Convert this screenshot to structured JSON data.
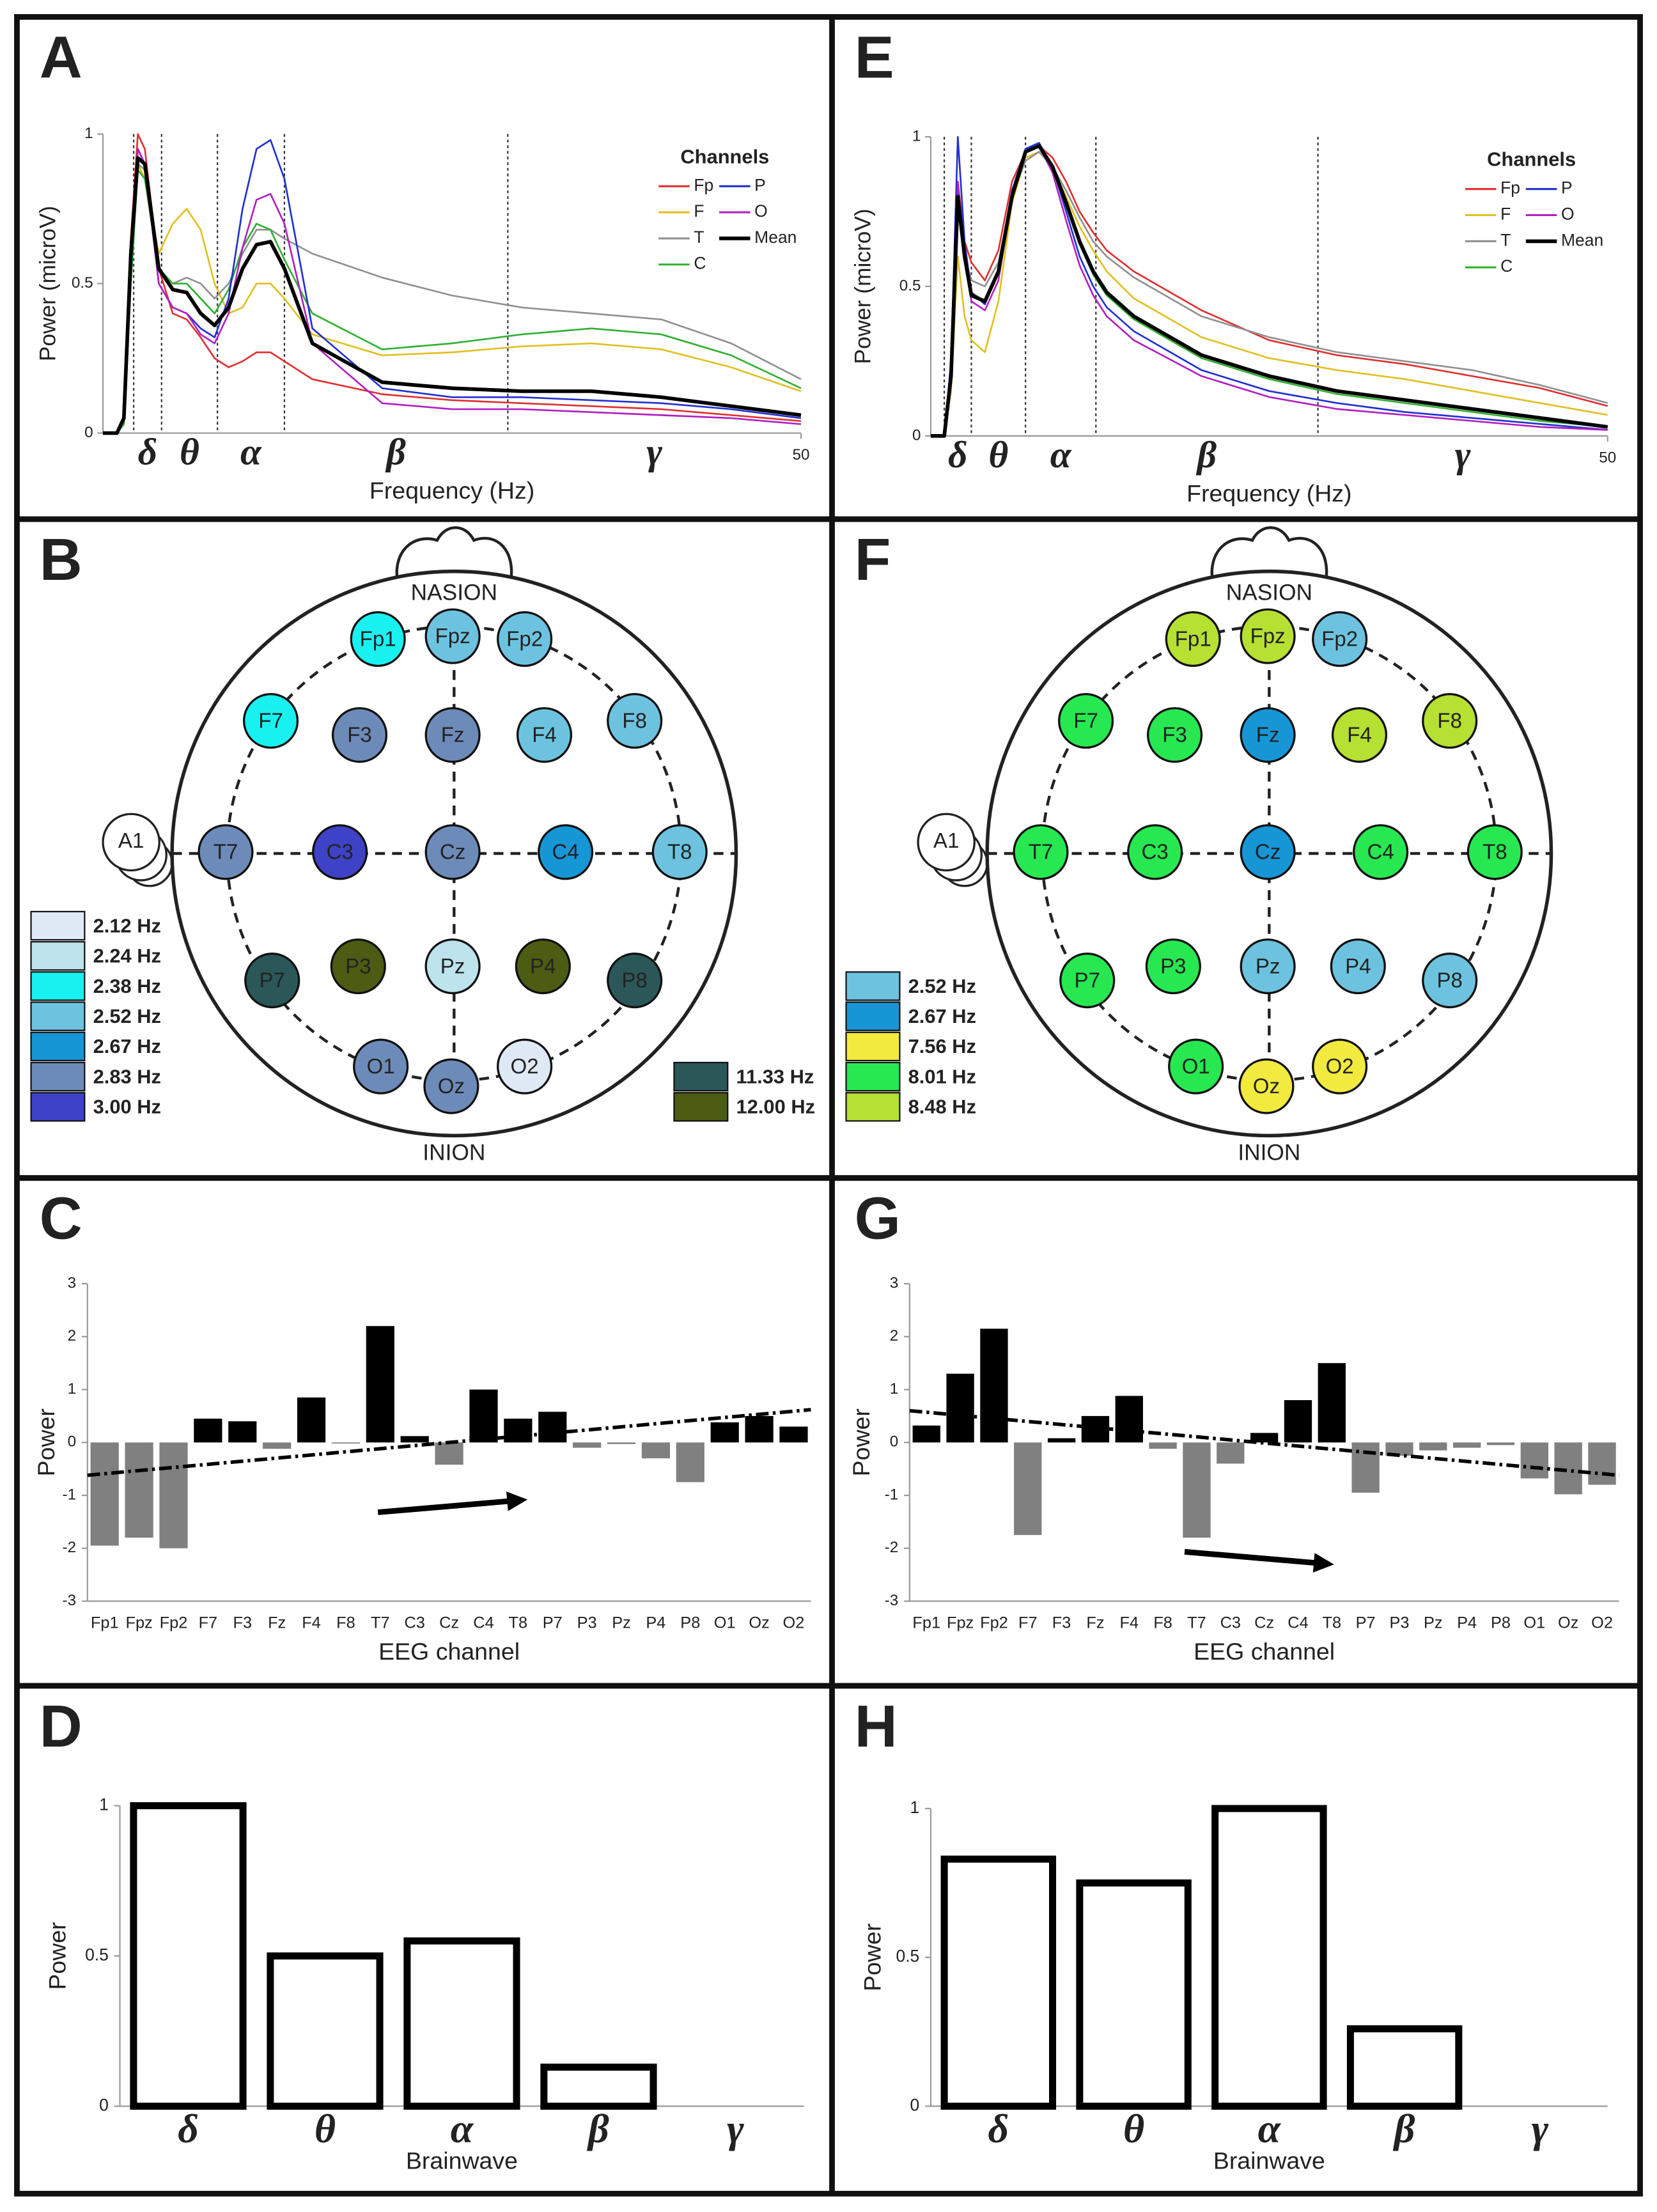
{
  "chart_data": [
    {
      "type": "line",
      "panel_label": "A",
      "xlabel": "Frequency (Hz)",
      "ylabel": "Power (microV)",
      "x": [
        0,
        1,
        1.5,
        2,
        2.5,
        3,
        4,
        5,
        6,
        7,
        8,
        9,
        10,
        11,
        12,
        13,
        15,
        20,
        25,
        30,
        35,
        40,
        45,
        50
      ],
      "xlim": [
        0,
        50
      ],
      "xticks": [
        50
      ],
      "ylim": [
        0,
        1
      ],
      "yticks": [
        0,
        0.5,
        1
      ],
      "vlines": [
        2.2,
        4.2,
        8.2,
        13,
        29
      ],
      "band_labels": [
        "δ",
        "θ",
        "α",
        "β",
        "γ"
      ],
      "legend_title": "Channels",
      "series": [
        {
          "name": "Fp",
          "color": "#e03030",
          "values": [
            0,
            0,
            0.05,
            0.65,
            1.0,
            0.95,
            0.55,
            0.4,
            0.38,
            0.32,
            0.25,
            0.22,
            0.24,
            0.27,
            0.27,
            0.24,
            0.18,
            0.13,
            0.11,
            0.1,
            0.09,
            0.08,
            0.06,
            0.04
          ]
        },
        {
          "name": "F",
          "color": "#e0c020",
          "values": [
            0,
            0,
            0.03,
            0.5,
            0.9,
            0.85,
            0.6,
            0.7,
            0.75,
            0.68,
            0.5,
            0.4,
            0.42,
            0.5,
            0.5,
            0.45,
            0.33,
            0.26,
            0.27,
            0.29,
            0.3,
            0.28,
            0.22,
            0.14
          ]
        },
        {
          "name": "T",
          "color": "#909090",
          "values": [
            0,
            0,
            0.03,
            0.55,
            0.9,
            0.88,
            0.55,
            0.5,
            0.52,
            0.5,
            0.45,
            0.5,
            0.6,
            0.68,
            0.68,
            0.65,
            0.6,
            0.52,
            0.46,
            0.42,
            0.4,
            0.38,
            0.3,
            0.18
          ]
        },
        {
          "name": "C",
          "color": "#30b030",
          "values": [
            0,
            0,
            0.03,
            0.5,
            0.88,
            0.85,
            0.55,
            0.5,
            0.5,
            0.45,
            0.4,
            0.48,
            0.62,
            0.7,
            0.68,
            0.58,
            0.4,
            0.28,
            0.3,
            0.33,
            0.35,
            0.33,
            0.26,
            0.15
          ]
        },
        {
          "name": "P",
          "color": "#2030d0",
          "values": [
            0,
            0,
            0.05,
            0.6,
            0.95,
            0.9,
            0.5,
            0.42,
            0.4,
            0.35,
            0.32,
            0.45,
            0.75,
            0.95,
            0.98,
            0.85,
            0.35,
            0.15,
            0.12,
            0.12,
            0.11,
            0.1,
            0.08,
            0.05
          ]
        },
        {
          "name": "O",
          "color": "#b020c0",
          "values": [
            0,
            0,
            0.05,
            0.6,
            0.95,
            0.9,
            0.5,
            0.42,
            0.4,
            0.33,
            0.3,
            0.4,
            0.62,
            0.78,
            0.8,
            0.7,
            0.3,
            0.1,
            0.08,
            0.08,
            0.07,
            0.06,
            0.05,
            0.03
          ]
        },
        {
          "name": "Mean",
          "color": "#000000",
          "values": [
            0,
            0,
            0.05,
            0.6,
            0.92,
            0.9,
            0.55,
            0.48,
            0.47,
            0.4,
            0.36,
            0.42,
            0.55,
            0.63,
            0.64,
            0.55,
            0.3,
            0.17,
            0.15,
            0.14,
            0.14,
            0.12,
            0.09,
            0.06
          ]
        }
      ]
    },
    {
      "type": "topomap",
      "panel_label": "B",
      "nasion": "NASION",
      "inion": "INION",
      "ear": "A1",
      "electrodes": [
        {
          "label": "Fp1",
          "color": "#19f1f1"
        },
        {
          "label": "Fpz",
          "color": "#6dc3df"
        },
        {
          "label": "Fp2",
          "color": "#6dc3df"
        },
        {
          "label": "F7",
          "color": "#19f1f1"
        },
        {
          "label": "F3",
          "color": "#6d8bb9"
        },
        {
          "label": "Fz",
          "color": "#6d8bb9"
        },
        {
          "label": "F4",
          "color": "#6dc3df"
        },
        {
          "label": "F8",
          "color": "#6dc3df"
        },
        {
          "label": "T7",
          "color": "#6d8bb9"
        },
        {
          "label": "C3",
          "color": "#3d42c6"
        },
        {
          "label": "Cz",
          "color": "#6d8bb9"
        },
        {
          "label": "C4",
          "color": "#1796d6"
        },
        {
          "label": "T8",
          "color": "#6dc3df"
        },
        {
          "label": "P7",
          "color": "#2c5758"
        },
        {
          "label": "P3",
          "color": "#4c5c12"
        },
        {
          "label": "Pz",
          "color": "#bde3ec"
        },
        {
          "label": "P4",
          "color": "#4c5c12"
        },
        {
          "label": "P8",
          "color": "#2c5758"
        },
        {
          "label": "O1",
          "color": "#6d8bb9"
        },
        {
          "label": "Oz",
          "color": "#6d8bb9"
        },
        {
          "label": "O2",
          "color": "#dfe9f6"
        }
      ],
      "legend": [
        [
          {
            "label": "2.12 Hz",
            "color": "#dfe9f6"
          },
          {
            "label": "2.24 Hz",
            "color": "#bde3ec"
          },
          {
            "label": "2.38 Hz",
            "color": "#19f1f1"
          },
          {
            "label": "2.52 Hz",
            "color": "#6dc3df"
          },
          {
            "label": "2.67 Hz",
            "color": "#1796d6"
          },
          {
            "label": "2.83 Hz",
            "color": "#6d8bb9"
          },
          {
            "label": "3.00 Hz",
            "color": "#3d42c6"
          }
        ],
        [
          {
            "label": "11.33 Hz",
            "color": "#2c5758"
          },
          {
            "label": "12.00 Hz",
            "color": "#4c5c12"
          }
        ]
      ]
    },
    {
      "type": "bar",
      "panel_label": "C",
      "xlabel": "EEG channel",
      "ylabel": "Power",
      "categories": [
        "Fp1",
        "Fpz",
        "Fp2",
        "F7",
        "F3",
        "Fz",
        "F4",
        "F8",
        "T7",
        "C3",
        "Cz",
        "C4",
        "T8",
        "P7",
        "P3",
        "Pz",
        "P4",
        "P8",
        "O1",
        "Oz",
        "O2"
      ],
      "values": [
        -1.95,
        -1.8,
        -2.0,
        0.45,
        0.4,
        -0.12,
        0.85,
        -0.02,
        2.2,
        0.12,
        -0.42,
        1.0,
        0.45,
        0.58,
        -0.1,
        -0.03,
        -0.3,
        -0.75,
        0.38,
        0.5,
        0.3
      ],
      "color": "#000000",
      "negative_color": "#808080",
      "ylim": [
        -3,
        3
      ],
      "yticks": [
        -3,
        -2,
        -1,
        0,
        1,
        2,
        3
      ],
      "trend": [
        -0.62,
        0.62
      ]
    },
    {
      "type": "bar",
      "panel_label": "D",
      "xlabel": "Brainwave",
      "ylabel": "Power",
      "categories": [
        "δ",
        "θ",
        "α",
        "β",
        "γ"
      ],
      "values": [
        1,
        0.5,
        0.55,
        0.13,
        0
      ],
      "color": "#ffffff",
      "edge_color": "#000000",
      "ylim": [
        0,
        1
      ],
      "yticks": [
        0,
        0.5,
        1
      ]
    },
    {
      "type": "line",
      "panel_label": "E",
      "xlabel": "Frequency (Hz)",
      "ylabel": "Power (microV)",
      "x": [
        0,
        1,
        1.5,
        2,
        2.5,
        3,
        4,
        5,
        6,
        7,
        8,
        9,
        10,
        11,
        12,
        13,
        15,
        20,
        25,
        30,
        35,
        40,
        45,
        50
      ],
      "xlim": [
        0,
        50
      ],
      "xticks": [
        50
      ],
      "ylim": [
        0,
        1
      ],
      "yticks": [
        0,
        0.5,
        1
      ],
      "vlines": [
        1,
        3,
        7,
        12.2,
        28.6
      ],
      "band_labels": [
        "δ",
        "θ",
        "α",
        "β",
        "γ"
      ],
      "legend_title": "Channels",
      "series": [
        {
          "name": "Fp",
          "color": "#e03030",
          "values": [
            0,
            0,
            0.2,
            0.85,
            0.65,
            0.58,
            0.52,
            0.62,
            0.85,
            0.95,
            0.97,
            0.93,
            0.85,
            0.75,
            0.68,
            0.62,
            0.55,
            0.42,
            0.32,
            0.27,
            0.24,
            0.2,
            0.16,
            0.1
          ]
        },
        {
          "name": "F",
          "color": "#e0c020",
          "values": [
            0,
            0,
            0.15,
            0.6,
            0.4,
            0.32,
            0.28,
            0.45,
            0.78,
            0.93,
            0.95,
            0.9,
            0.8,
            0.7,
            0.62,
            0.55,
            0.46,
            0.33,
            0.26,
            0.22,
            0.19,
            0.15,
            0.11,
            0.07
          ]
        },
        {
          "name": "T",
          "color": "#909090",
          "values": [
            0,
            0,
            0.2,
            0.8,
            0.6,
            0.52,
            0.5,
            0.58,
            0.8,
            0.92,
            0.95,
            0.9,
            0.82,
            0.73,
            0.65,
            0.6,
            0.53,
            0.4,
            0.33,
            0.28,
            0.25,
            0.22,
            0.17,
            0.11
          ]
        },
        {
          "name": "C",
          "color": "#30b030",
          "values": [
            0,
            0,
            0.2,
            0.8,
            0.6,
            0.48,
            0.45,
            0.55,
            0.8,
            0.95,
            0.97,
            0.9,
            0.77,
            0.64,
            0.54,
            0.47,
            0.39,
            0.26,
            0.19,
            0.14,
            0.11,
            0.08,
            0.05,
            0.03
          ]
        },
        {
          "name": "P",
          "color": "#2030d0",
          "values": [
            0,
            0,
            0.25,
            1.0,
            0.65,
            0.48,
            0.44,
            0.55,
            0.82,
            0.96,
            0.98,
            0.9,
            0.75,
            0.6,
            0.5,
            0.43,
            0.35,
            0.22,
            0.15,
            0.11,
            0.08,
            0.06,
            0.04,
            0.02
          ]
        },
        {
          "name": "O",
          "color": "#b020c0",
          "values": [
            0,
            0,
            0.2,
            0.85,
            0.6,
            0.45,
            0.42,
            0.52,
            0.8,
            0.95,
            0.97,
            0.88,
            0.72,
            0.57,
            0.47,
            0.4,
            0.32,
            0.2,
            0.13,
            0.09,
            0.07,
            0.05,
            0.03,
            0.02
          ]
        },
        {
          "name": "Mean",
          "color": "#000000",
          "values": [
            0,
            0,
            0.2,
            0.8,
            0.6,
            0.47,
            0.45,
            0.55,
            0.8,
            0.95,
            0.97,
            0.9,
            0.78,
            0.65,
            0.55,
            0.48,
            0.4,
            0.27,
            0.2,
            0.15,
            0.12,
            0.09,
            0.06,
            0.03
          ]
        }
      ]
    },
    {
      "type": "topomap",
      "panel_label": "F",
      "nasion": "NASION",
      "inion": "INION",
      "ear": "A1",
      "electrodes": [
        {
          "label": "Fp1",
          "color": "#b6e032"
        },
        {
          "label": "Fpz",
          "color": "#b6e032"
        },
        {
          "label": "Fp2",
          "color": "#6dc3df"
        },
        {
          "label": "F7",
          "color": "#27e850"
        },
        {
          "label": "F3",
          "color": "#27e850"
        },
        {
          "label": "Fz",
          "color": "#1796d6"
        },
        {
          "label": "F4",
          "color": "#b6e032"
        },
        {
          "label": "F8",
          "color": "#b6e032"
        },
        {
          "label": "T7",
          "color": "#27e850"
        },
        {
          "label": "C3",
          "color": "#27e850"
        },
        {
          "label": "Cz",
          "color": "#1796d6"
        },
        {
          "label": "C4",
          "color": "#27e850"
        },
        {
          "label": "T8",
          "color": "#27e850"
        },
        {
          "label": "P7",
          "color": "#27e850"
        },
        {
          "label": "P3",
          "color": "#27e850"
        },
        {
          "label": "Pz",
          "color": "#6dc3df"
        },
        {
          "label": "P4",
          "color": "#6dc3df"
        },
        {
          "label": "P8",
          "color": "#6dc3df"
        },
        {
          "label": "O1",
          "color": "#27e850"
        },
        {
          "label": "Oz",
          "color": "#f2ea3e"
        },
        {
          "label": "O2",
          "color": "#f2ea3e"
        }
      ],
      "legend": [
        [
          {
            "label": "2.52 Hz",
            "color": "#6dc3df"
          },
          {
            "label": "2.67 Hz",
            "color": "#1796d6"
          },
          {
            "label": "7.56 Hz",
            "color": "#f2ea3e"
          },
          {
            "label": "8.01 Hz",
            "color": "#27e850"
          },
          {
            "label": "8.48 Hz",
            "color": "#b6e032"
          }
        ]
      ]
    },
    {
      "type": "bar",
      "panel_label": "G",
      "xlabel": "EEG channel",
      "ylabel": "Power",
      "categories": [
        "Fp1",
        "Fpz",
        "Fp2",
        "F7",
        "F3",
        "Fz",
        "F4",
        "F8",
        "T7",
        "C3",
        "Cz",
        "C4",
        "T8",
        "P7",
        "P3",
        "Pz",
        "P4",
        "P8",
        "O1",
        "Oz",
        "O2"
      ],
      "values": [
        0.32,
        1.3,
        2.15,
        -1.75,
        0.08,
        0.5,
        0.88,
        -0.12,
        -1.8,
        -0.4,
        0.18,
        0.8,
        1.5,
        -0.95,
        -0.25,
        -0.15,
        -0.1,
        -0.05,
        -0.68,
        -0.98,
        -0.8
      ],
      "color": "#000000",
      "negative_color": "#808080",
      "ylim": [
        -3,
        3
      ],
      "yticks": [
        -3,
        -2,
        -1,
        0,
        1,
        2,
        3
      ],
      "trend": [
        0.6,
        -0.62
      ]
    },
    {
      "type": "bar",
      "panel_label": "H",
      "xlabel": "Brainwave",
      "ylabel": "Power",
      "categories": [
        "δ",
        "θ",
        "α",
        "β",
        "γ"
      ],
      "values": [
        0.83,
        0.75,
        1.0,
        0.26,
        0
      ],
      "color": "#ffffff",
      "edge_color": "#000000",
      "ylim": [
        0,
        1
      ],
      "yticks": [
        0,
        0.5,
        1
      ]
    }
  ]
}
